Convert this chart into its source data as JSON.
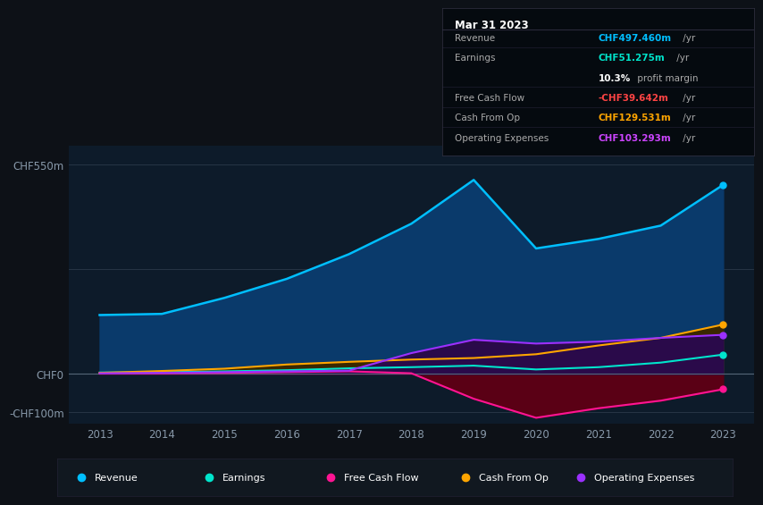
{
  "bg_color": "#0d1117",
  "plot_bg_color": "#0d1b2a",
  "years": [
    2013,
    2014,
    2015,
    2016,
    2017,
    2018,
    2019,
    2020,
    2021,
    2022,
    2023
  ],
  "revenue": [
    155,
    158,
    200,
    250,
    315,
    395,
    510,
    330,
    355,
    390,
    497
  ],
  "earnings": [
    4,
    5,
    7,
    10,
    15,
    18,
    22,
    12,
    18,
    30,
    51
  ],
  "free_cash_flow": [
    2,
    2,
    3,
    5,
    7,
    2,
    -65,
    -115,
    -90,
    -70,
    -40
  ],
  "cash_from_op": [
    3,
    8,
    14,
    25,
    32,
    38,
    42,
    52,
    75,
    95,
    130
  ],
  "operating_expenses": [
    2,
    3,
    5,
    7,
    9,
    55,
    90,
    80,
    85,
    95,
    103
  ],
  "revenue_color": "#00bfff",
  "earnings_color": "#00e5cc",
  "fcf_color": "#ff1493",
  "cashop_color": "#ffa500",
  "opex_color": "#9b30ff",
  "revenue_fill": "#0a3a6b",
  "earnings_fill": "#1a5a50",
  "fcf_fill": "#6b0020",
  "cashop_fill": "#5a3a00",
  "opex_fill": "#3a1a6b",
  "ylim_min": -130,
  "ylim_max": 600,
  "ytick_labels": [
    "CHF550m",
    "CHF0",
    "-CHF100m"
  ],
  "ytick_values": [
    550,
    0,
    -100
  ],
  "xtick_labels": [
    "2013",
    "2014",
    "2015",
    "2016",
    "2017",
    "2018",
    "2019",
    "2020",
    "2021",
    "2022",
    "2023"
  ],
  "grid_color": "#2a3a4a",
  "info_box": {
    "date": "Mar 31 2023",
    "revenue_label": "Revenue",
    "revenue_value": "CHF497.460m",
    "revenue_color": "#00bfff",
    "earnings_label": "Earnings",
    "earnings_value": "CHF51.275m",
    "earnings_color": "#00e5cc",
    "margin_pct": "10.3%",
    "margin_text": " profit margin",
    "fcf_label": "Free Cash Flow",
    "fcf_value": "-CHF39.642m",
    "fcf_color": "#ff4444",
    "cashop_label": "Cash From Op",
    "cashop_value": "CHF129.531m",
    "cashop_color": "#ffa500",
    "opex_label": "Operating Expenses",
    "opex_value": "CHF103.293m",
    "opex_color": "#cc44ff"
  },
  "legend_items": [
    {
      "label": "Revenue",
      "color": "#00bfff"
    },
    {
      "label": "Earnings",
      "color": "#00e5cc"
    },
    {
      "label": "Free Cash Flow",
      "color": "#ff1493"
    },
    {
      "label": "Cash From Op",
      "color": "#ffa500"
    },
    {
      "label": "Operating Expenses",
      "color": "#9b30ff"
    }
  ]
}
